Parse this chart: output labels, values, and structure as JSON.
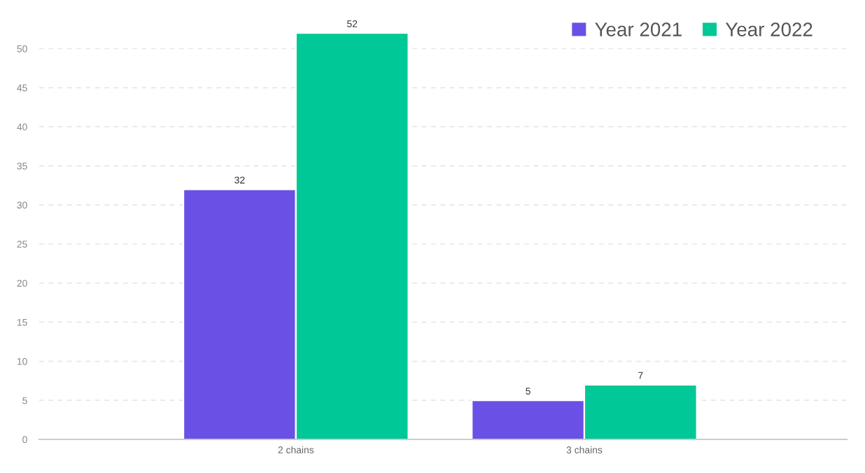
{
  "chart_data": {
    "type": "bar",
    "categories": [
      "2 chains",
      "3 chains"
    ],
    "series": [
      {
        "name": "Year 2021",
        "color": "#6b50e6",
        "values": [
          32,
          5
        ]
      },
      {
        "name": "Year 2022",
        "color": "#00c896",
        "values": [
          52,
          7
        ]
      }
    ],
    "ylim": [
      0,
      53
    ],
    "yticks": [
      0,
      5,
      10,
      15,
      20,
      25,
      30,
      35,
      40,
      45,
      50
    ],
    "grid": "y",
    "legend": "top right",
    "data_labels": true
  }
}
